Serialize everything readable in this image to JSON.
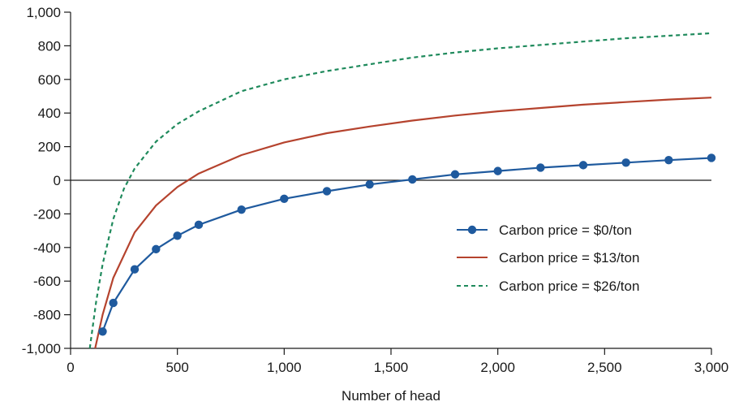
{
  "chart_data": {
    "type": "line",
    "title": "",
    "xlabel": "Number of head",
    "ylabel": "",
    "xlim": [
      0,
      3000
    ],
    "ylim": [
      -1000,
      1000
    ],
    "xticks": [
      0,
      500,
      1000,
      1500,
      2000,
      2500,
      3000
    ],
    "xtick_labels": [
      "0",
      "500",
      "1,000",
      "1,500",
      "2,000",
      "2,500",
      "3,000"
    ],
    "yticks": [
      -1000,
      -800,
      -600,
      -400,
      -200,
      0,
      200,
      400,
      600,
      800,
      1000
    ],
    "ytick_labels": [
      "-1,000",
      "-800",
      "-600",
      "-400",
      "-200",
      "0",
      "200",
      "400",
      "600",
      "800",
      "1,000"
    ],
    "grid": false,
    "legend_position": "center-right",
    "series": [
      {
        "name": "Carbon price = $0/ton",
        "color": "#1f5a9e",
        "style": "solid-with-markers",
        "x": [
          150,
          200,
          300,
          400,
          500,
          600,
          800,
          1000,
          1200,
          1400,
          1600,
          1800,
          2000,
          2200,
          2400,
          2600,
          2800,
          3000
        ],
        "y": [
          -900,
          -730,
          -530,
          -410,
          -330,
          -265,
          -175,
          -110,
          -65,
          -25,
          5,
          35,
          55,
          75,
          90,
          105,
          120,
          133
        ]
      },
      {
        "name": "Carbon price = $13/ton",
        "color": "#b5432e",
        "style": "solid",
        "x": [
          115,
          150,
          200,
          300,
          400,
          500,
          600,
          800,
          1000,
          1200,
          1400,
          1600,
          1800,
          2000,
          2200,
          2400,
          2600,
          2800,
          3000
        ],
        "y": [
          -1000,
          -800,
          -580,
          -310,
          -150,
          -40,
          40,
          150,
          225,
          280,
          320,
          355,
          385,
          410,
          430,
          450,
          465,
          480,
          492
        ]
      },
      {
        "name": "Carbon price = $26/ton",
        "color": "#1f8a5c",
        "style": "dashed",
        "x": [
          90,
          120,
          150,
          200,
          250,
          300,
          400,
          500,
          600,
          800,
          1000,
          1200,
          1400,
          1600,
          1800,
          2000,
          2200,
          2400,
          2600,
          2800,
          3000
        ],
        "y": [
          -1000,
          -720,
          -500,
          -230,
          -50,
          70,
          230,
          335,
          410,
          530,
          600,
          650,
          690,
          730,
          760,
          785,
          805,
          825,
          845,
          860,
          875
        ]
      }
    ]
  }
}
